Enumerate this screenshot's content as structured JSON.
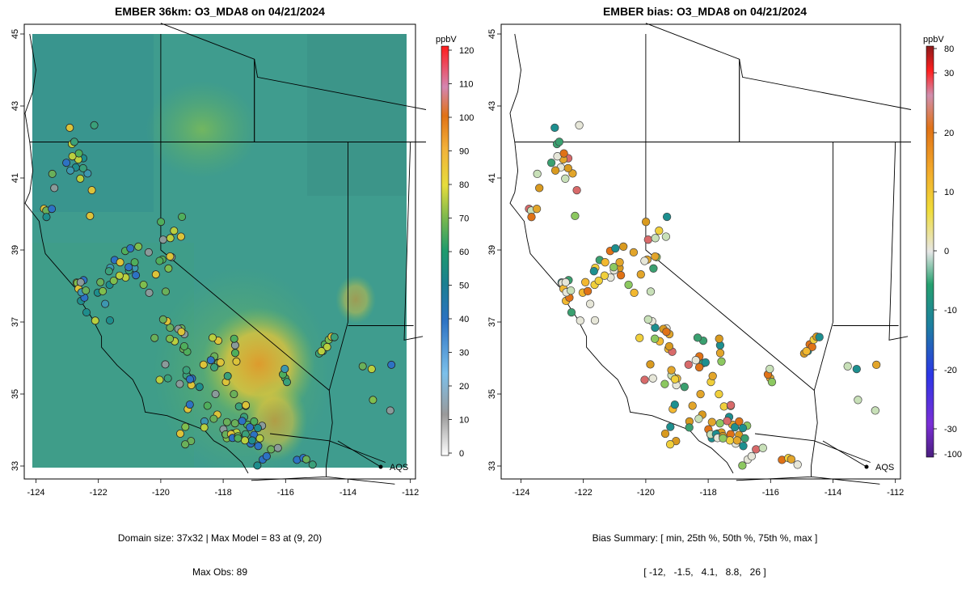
{
  "left_panel": {
    "title": "EMBER 36km: O3_MDA8 on 04/21/2024",
    "caption_line1": "Domain size: 37x32 | Max Model = 83 at (9, 20)",
    "caption_line2": "Max Obs: 89",
    "colorbar": {
      "unit": "ppbV",
      "ticks": [
        "0",
        "10",
        "20",
        "30",
        "40",
        "50",
        "60",
        "70",
        "80",
        "90",
        "100",
        "110",
        "120"
      ],
      "range": [
        -2,
        121
      ]
    }
  },
  "right_panel": {
    "title": "EMBER bias: O3_MDA8 on 04/21/2024",
    "caption_line1": "Bias Summary: [ min, 25th %, 50th %, 75th %, max ]",
    "caption_line2": "[ -12,   -1.5,   4.1,   8.8,   26 ]",
    "colorbar": {
      "unit": "ppbV",
      "ticks": [
        "-100",
        "-30",
        "-20",
        "-10",
        "0",
        "10",
        "20",
        "30",
        "80"
      ]
    }
  },
  "map_axes": {
    "lon_ticks": [
      "-124",
      "-122",
      "-120",
      "-118",
      "-116",
      "-114",
      "-112"
    ],
    "lat_ticks": [
      "33",
      "35",
      "37",
      "39",
      "41",
      "43",
      "45"
    ],
    "lon_range": [
      -124.3,
      -111.7
    ],
    "lat_range": [
      32.6,
      45.1
    ]
  },
  "legend": {
    "label": "AQS"
  },
  "colors": {
    "model_field_base": "#3f9c8e",
    "hotspot": "#e39a2a",
    "bias_positive": "#e08a1e",
    "bias_negative": "#3aa060"
  }
}
